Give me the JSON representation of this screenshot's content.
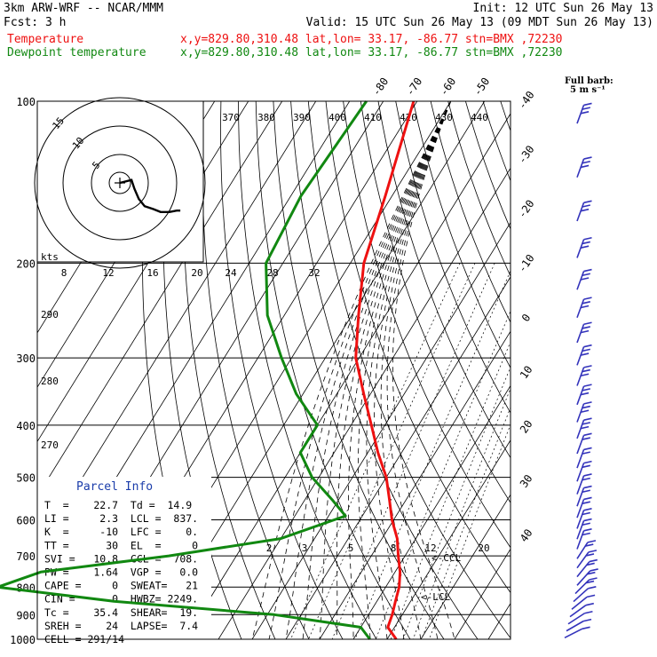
{
  "header": {
    "title": "3km ARW-WRF -- NCAR/MMM",
    "init": "Init: 12 UTC Sun 26 May 13",
    "fcst": "Fcst:     3 h",
    "valid": "Valid: 15 UTC Sun 26 May 13 (09 MDT Sun 26 May 13)",
    "temp_label": "Temperature",
    "dew_label": "Dewpoint temperature",
    "temp_loc": "x,y=829.80,310.48   lat,lon= 33.17, -86.77   stn=BMX ,72230",
    "dew_loc": "x,y=829.80,310.48   lat,lon= 33.17, -86.77   stn=BMX ,72230"
  },
  "colors": {
    "temperature": "#ee1111",
    "dewpoint": "#118811",
    "wind": "#3333bb",
    "parcel_title": "#1a3caa",
    "grid": "#000000"
  },
  "barb_legend": {
    "title": "Full barb:",
    "unit": "5 m s⁻¹"
  },
  "hodograph": {
    "units": "kts",
    "ring_labels": [
      "5",
      "10",
      "15"
    ],
    "trace": [
      [
        0,
        0
      ],
      [
        1.6,
        0.4
      ],
      [
        2.0,
        -0.8
      ],
      [
        2.6,
        -2.2
      ],
      [
        3.4,
        -3.2
      ],
      [
        4.6,
        -3.6
      ],
      [
        5.6,
        -4.0
      ],
      [
        6.8,
        -4.0
      ],
      [
        7.8,
        -3.8
      ],
      [
        8.3,
        -3.8
      ]
    ]
  },
  "parcel_info": {
    "title": "Parcel Info",
    "rows": [
      "T  =    22.7  Td =  14.9",
      "LI =     2.3  LCL =  837.",
      "K  =     -10  LFC =    0.",
      "TT =      30  EL  =     0",
      "SVI =   10.8  CCL =  708.",
      "PW =    1.64  VGP =   0.0",
      "CAPE =     0  SWEAT=   21",
      "CIN =      0  HWBZ= 2249.",
      "Tc =    35.4  SHEAR=  19.",
      "SREH =    24  LAPSE=  7.4",
      "CELL = 291/14"
    ]
  },
  "chart_data": {
    "type": "line",
    "diagram": "Skew-T log-P",
    "pressure_levels": [
      100,
      200,
      300,
      400,
      500,
      600,
      700,
      800,
      900,
      1000
    ],
    "temperature_scale": [
      -80,
      -70,
      -60,
      -50,
      -40,
      -30,
      -20,
      -10,
      0,
      10,
      20,
      30,
      40
    ],
    "theta_e_labels": [
      370,
      380,
      390,
      400,
      410,
      420,
      430,
      440
    ],
    "theta_labels_upper": [
      290,
      280,
      270
    ],
    "mixing_ratio_labels_upper": [
      8,
      12,
      16,
      20,
      24,
      28,
      32
    ],
    "mixing_ratio_labels_lower": [
      2,
      3,
      5,
      8,
      12,
      20
    ],
    "lcl_label": "<-LCL",
    "ccl_label": "<-CCL",
    "series": [
      {
        "name": "Temperature",
        "points": [
          [
            100,
            -71
          ],
          [
            150,
            -62
          ],
          [
            200,
            -56
          ],
          [
            250,
            -48
          ],
          [
            300,
            -41
          ],
          [
            350,
            -32
          ],
          [
            400,
            -24
          ],
          [
            450,
            -17
          ],
          [
            500,
            -10
          ],
          [
            550,
            -5
          ],
          [
            600,
            -0.5
          ],
          [
            650,
            4.5
          ],
          [
            700,
            8
          ],
          [
            750,
            11.5
          ],
          [
            800,
            14
          ],
          [
            850,
            15.5
          ],
          [
            900,
            17
          ],
          [
            950,
            18
          ],
          [
            1000,
            22.7
          ]
        ]
      },
      {
        "name": "Dewpoint temperature",
        "points": [
          [
            100,
            -85
          ],
          [
            150,
            -87
          ],
          [
            200,
            -85
          ],
          [
            250,
            -75
          ],
          [
            300,
            -63
          ],
          [
            350,
            -52
          ],
          [
            400,
            -40
          ],
          [
            450,
            -40
          ],
          [
            500,
            -32
          ],
          [
            550,
            -22
          ],
          [
            590,
            -15
          ],
          [
            650,
            -30
          ],
          [
            700,
            -60
          ],
          [
            750,
            -95
          ],
          [
            800,
            -105
          ],
          [
            850,
            -68
          ],
          [
            900,
            -18
          ],
          [
            950,
            10
          ],
          [
            1000,
            14.9
          ]
        ]
      }
    ]
  }
}
